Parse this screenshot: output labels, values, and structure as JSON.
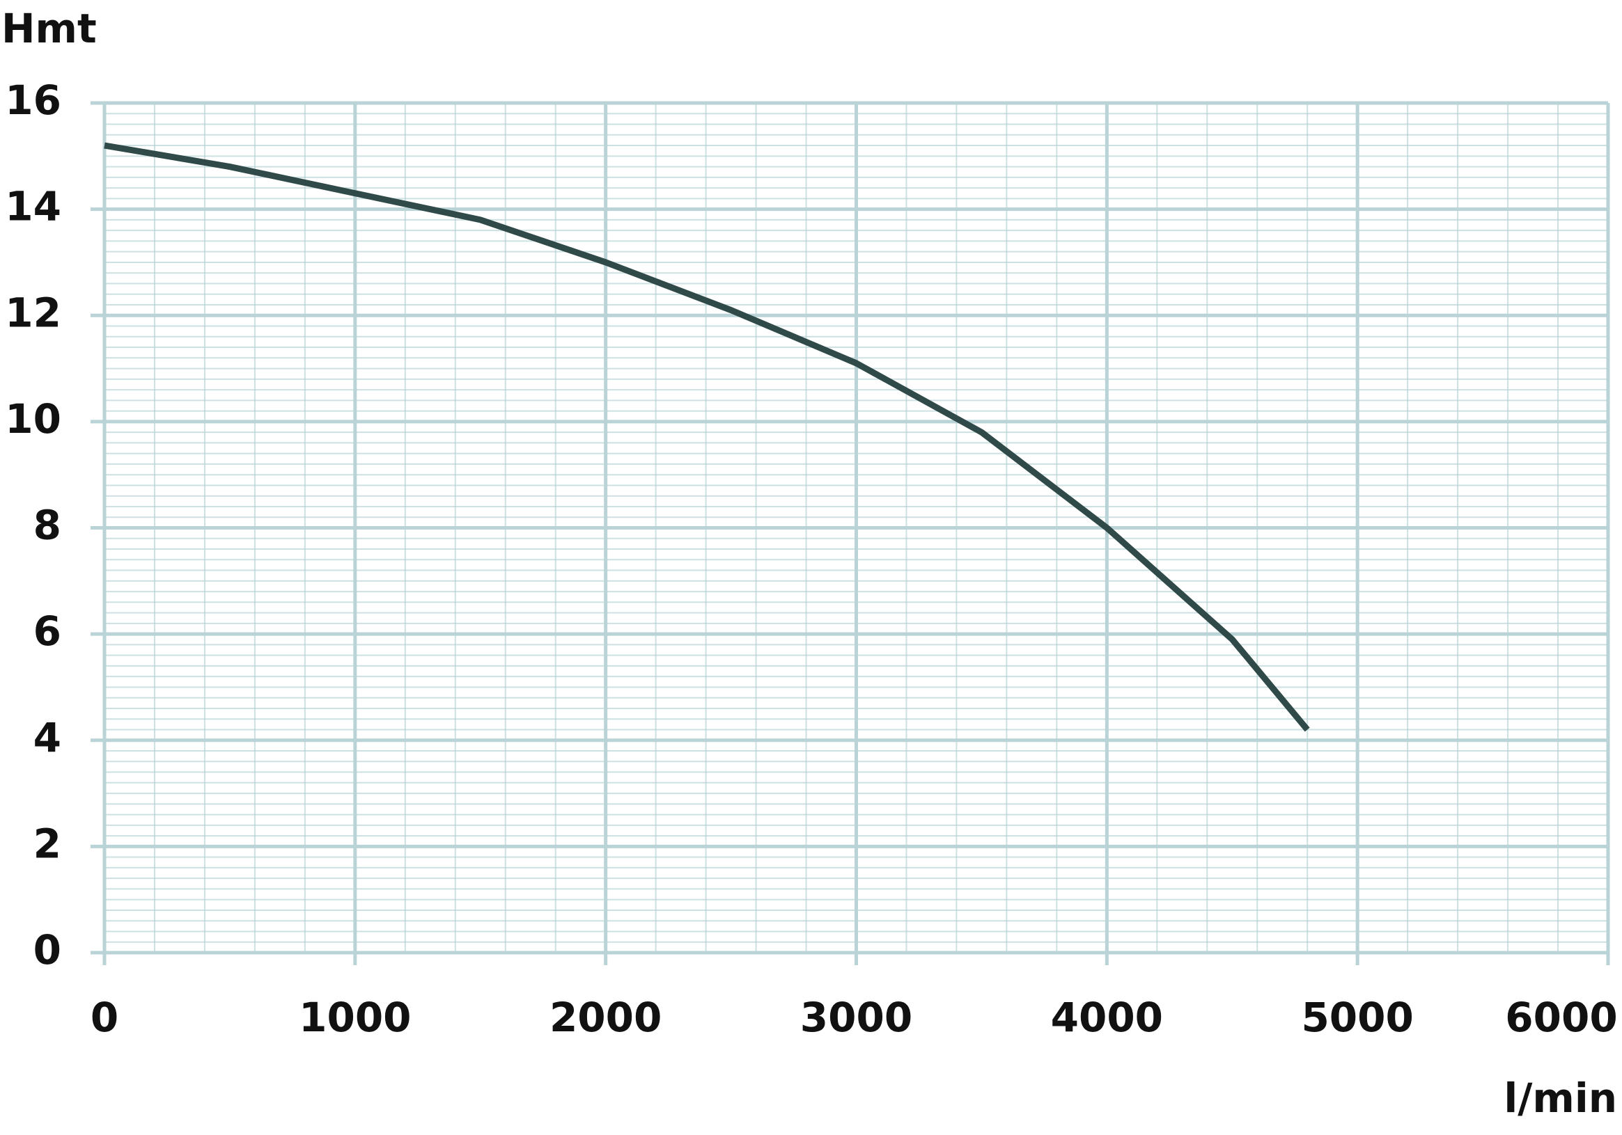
{
  "chart_data": {
    "type": "line",
    "y_label": "Hmt",
    "x_label": "l/min",
    "x": [
      0,
      500,
      1000,
      1500,
      2000,
      2500,
      3000,
      3500,
      4000,
      4500,
      4800
    ],
    "series": [
      {
        "color": "#2f4a48",
        "values": [
          15.2,
          14.8,
          14.3,
          13.8,
          13.0,
          12.1,
          11.1,
          9.8,
          8.0,
          5.9,
          4.2
        ]
      }
    ],
    "xlim": [
      0,
      6000
    ],
    "xticks": [
      0,
      1000,
      2000,
      3000,
      4000,
      5000,
      6000
    ],
    "ylim": [
      0,
      16
    ],
    "yticks": [
      0,
      2,
      4,
      6,
      8,
      10,
      12,
      14,
      16
    ],
    "grid": true,
    "grid_color": "#b9d3d6"
  }
}
